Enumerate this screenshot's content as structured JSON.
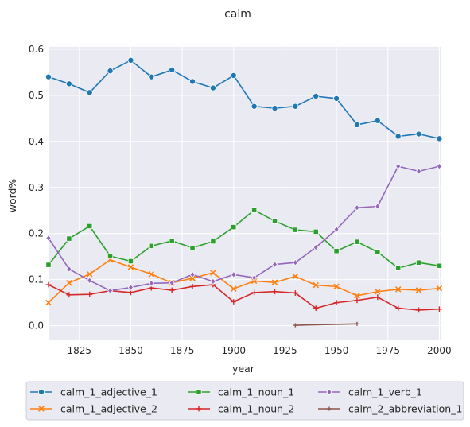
{
  "chart_data": {
    "type": "line",
    "title": "calm",
    "xlabel": "year",
    "ylabel": "word%",
    "xlim": [
      1810,
      2001
    ],
    "ylim": [
      -0.03,
      0.605
    ],
    "x_ticks": [
      1825,
      1850,
      1875,
      1900,
      1925,
      1950,
      1975,
      2000
    ],
    "y_ticks": [
      0.0,
      0.1,
      0.2,
      0.3,
      0.4,
      0.5,
      0.6
    ],
    "y_tick_labels": [
      "0.0",
      "0.1",
      "0.2",
      "0.3",
      "0.4",
      "0.5",
      "0.6"
    ],
    "grid": true,
    "legend_position": "bottom",
    "series": [
      {
        "name": "calm_1_adjective_1",
        "color": "#1f77b4",
        "marker": "circle",
        "x": [
          1810,
          1820,
          1830,
          1840,
          1850,
          1860,
          1870,
          1880,
          1890,
          1900,
          1910,
          1920,
          1930,
          1940,
          1950,
          1960,
          1970,
          1980,
          1990,
          2000
        ],
        "values": [
          0.54,
          0.525,
          0.506,
          0.553,
          0.576,
          0.54,
          0.555,
          0.53,
          0.516,
          0.543,
          0.476,
          0.472,
          0.476,
          0.498,
          0.493,
          0.436,
          0.445,
          0.411,
          0.416,
          0.406
        ]
      },
      {
        "name": "calm_1_adjective_2",
        "color": "#ff7f0e",
        "marker": "x",
        "x": [
          1810,
          1820,
          1830,
          1840,
          1850,
          1860,
          1870,
          1880,
          1890,
          1900,
          1910,
          1920,
          1930,
          1940,
          1950,
          1960,
          1970,
          1980,
          1990,
          2000
        ],
        "values": [
          0.05,
          0.093,
          0.112,
          0.143,
          0.127,
          0.112,
          0.093,
          0.103,
          0.115,
          0.08,
          0.097,
          0.094,
          0.107,
          0.088,
          0.085,
          0.065,
          0.074,
          0.079,
          0.077,
          0.081
        ]
      },
      {
        "name": "calm_1_noun_1",
        "color": "#2ca02c",
        "marker": "square",
        "x": [
          1810,
          1820,
          1830,
          1840,
          1850,
          1860,
          1870,
          1880,
          1890,
          1900,
          1910,
          1920,
          1930,
          1940,
          1950,
          1960,
          1970,
          1980,
          1990,
          2000
        ],
        "values": [
          0.132,
          0.189,
          0.216,
          0.151,
          0.14,
          0.173,
          0.184,
          0.169,
          0.183,
          0.214,
          0.251,
          0.227,
          0.208,
          0.204,
          0.162,
          0.182,
          0.16,
          0.125,
          0.137,
          0.13
        ]
      },
      {
        "name": "calm_1_noun_2",
        "color": "#d62728",
        "marker": "plus",
        "x": [
          1810,
          1820,
          1830,
          1840,
          1850,
          1860,
          1870,
          1880,
          1890,
          1900,
          1910,
          1920,
          1930,
          1940,
          1950,
          1960,
          1970,
          1980,
          1990,
          2000
        ],
        "values": [
          0.089,
          0.067,
          0.068,
          0.076,
          0.072,
          0.082,
          0.077,
          0.085,
          0.089,
          0.052,
          0.072,
          0.074,
          0.071,
          0.038,
          0.05,
          0.055,
          0.062,
          0.038,
          0.034,
          0.036
        ]
      },
      {
        "name": "calm_1_verb_1",
        "color": "#9467bd",
        "marker": "diamond",
        "x": [
          1810,
          1820,
          1830,
          1840,
          1850,
          1860,
          1870,
          1880,
          1890,
          1900,
          1910,
          1920,
          1930,
          1940,
          1950,
          1960,
          1970,
          1980,
          1990,
          2000
        ],
        "values": [
          0.19,
          0.123,
          0.098,
          0.076,
          0.083,
          0.092,
          0.093,
          0.111,
          0.096,
          0.111,
          0.104,
          0.133,
          0.137,
          0.17,
          0.209,
          0.256,
          0.259,
          0.346,
          0.335,
          0.346
        ]
      },
      {
        "name": "calm_2_abbreviation_1",
        "color": "#8c564b",
        "marker": "plus",
        "x": [
          1930,
          1960
        ],
        "values": [
          0.001,
          0.004
        ]
      }
    ]
  }
}
